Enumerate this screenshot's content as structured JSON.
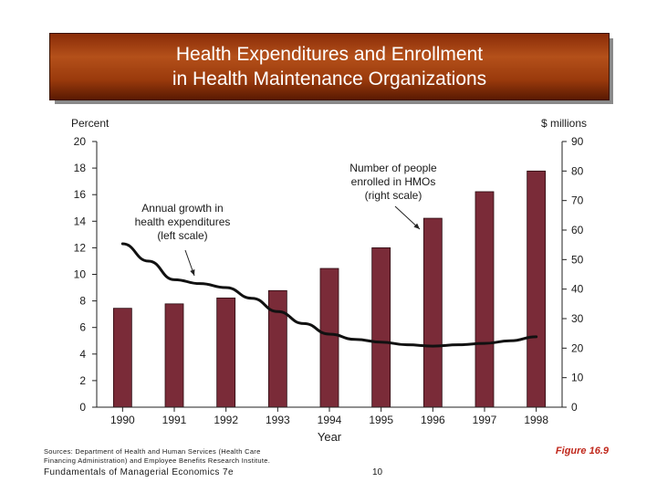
{
  "slide": {
    "title_line1": "Health Expenditures and Enrollment",
    "title_line2": "in Health Maintenance Organizations",
    "sources_line1": "Sources: Department of Health and Human Services (Health Care",
    "sources_line2": "Financing Administration) and Employee Benefits Research Institute.",
    "footer_left": "Fundamentals of Managerial Economics 7e",
    "page_number": "10",
    "figure_label": "Figure 16.9"
  },
  "colors": {
    "bar_fill": "#7a2b38",
    "bar_stroke": "#2a0a10",
    "line": "#111111",
    "title_bg": "#a0400f",
    "figure_label": "#c0281c"
  },
  "chart_data": {
    "type": "bar+line",
    "categories": [
      "1990",
      "1991",
      "1992",
      "1993",
      "1994",
      "1995",
      "1996",
      "1997",
      "1998"
    ],
    "xlabel": "Year",
    "ylabel_left": "Percent",
    "ylabel_right": "$ millions",
    "ylim_left": [
      0,
      20
    ],
    "ylim_right": [
      0,
      90
    ],
    "yticks_left": [
      0,
      2,
      4,
      6,
      8,
      10,
      12,
      14,
      16,
      18,
      20
    ],
    "yticks_right": [
      0,
      10,
      20,
      30,
      40,
      50,
      60,
      70,
      80,
      90
    ],
    "series": [
      {
        "name": "Number of people enrolled in HMOs (right scale)",
        "kind": "bar",
        "axis": "right",
        "values": [
          33.5,
          35,
          37,
          39.5,
          47,
          54,
          64,
          73,
          80
        ]
      },
      {
        "name": "Annual growth in health expenditures (left scale)",
        "kind": "line",
        "axis": "left",
        "x": [
          0,
          0.5,
          1,
          1.5,
          2,
          2.5,
          3,
          3.5,
          4,
          4.5,
          5,
          5.5,
          6,
          6.5,
          7,
          7.5,
          8
        ],
        "values": [
          12.3,
          11,
          9.6,
          9.3,
          9.0,
          8.2,
          7.2,
          6.3,
          5.5,
          5.1,
          4.9,
          4.7,
          4.6,
          4.7,
          4.8,
          5.0,
          5.3
        ]
      }
    ],
    "annotations": [
      {
        "line1": "Annual growth in",
        "line2": "health expenditures",
        "line3": "(left scale)"
      },
      {
        "line1": "Number of people",
        "line2": "enrolled in HMOs",
        "line3": "(right scale)"
      }
    ]
  }
}
